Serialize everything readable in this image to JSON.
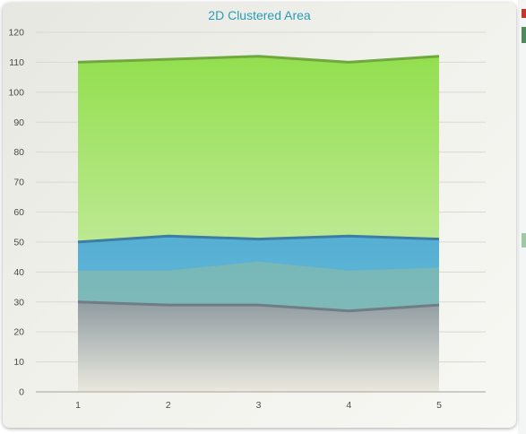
{
  "chart_data": {
    "type": "area",
    "title": "2D Clustered Area",
    "xlabel": "",
    "ylabel": "",
    "categories": [
      "1",
      "2",
      "3",
      "4",
      "5"
    ],
    "ylim": [
      0,
      120
    ],
    "y_ticks": [
      "0",
      "10",
      "20",
      "30",
      "40",
      "50",
      "60",
      "70",
      "80",
      "90",
      "100",
      "110",
      "120"
    ],
    "grid": true,
    "legend": "none",
    "series": [
      {
        "values": [
          110,
          111,
          112,
          110,
          112
        ],
        "line_color": "#6ea83e",
        "fill_top": "#93df4f",
        "fill_bottom": "#def1c8"
      },
      {
        "values": [
          50,
          52,
          51,
          52,
          51
        ],
        "line_color": "#3b7da3",
        "fill_top": "#4dabda",
        "fill_bottom": "#64b5d8"
      },
      {
        "values": [
          40,
          40,
          43,
          40,
          41
        ],
        "line_color": "#7bb8b5",
        "fill_top": "#7ab9b7",
        "fill_bottom": "#8cbab0"
      },
      {
        "values": [
          30,
          29,
          29,
          27,
          29
        ],
        "line_color": "#707d85",
        "fill_top": "#929aa0",
        "fill_bottom": "#f2ece2"
      }
    ]
  }
}
